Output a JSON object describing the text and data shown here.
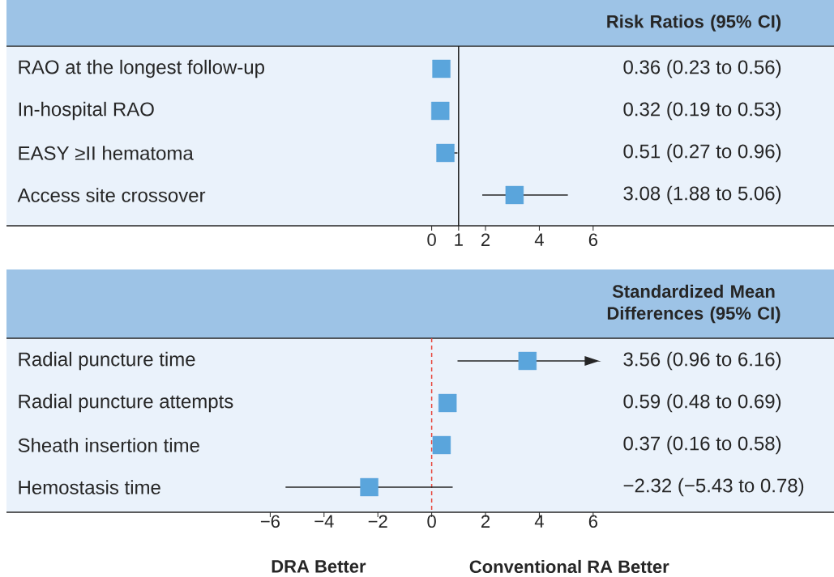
{
  "chart_data": [
    {
      "type": "scatter",
      "orientation": "horizontal",
      "title": "Risk Ratios (95% CI)",
      "categories": [
        "RAO at the longest follow-up",
        "In-hospital RAO",
        "EASY ≥II hematoma",
        "Access site crossover"
      ],
      "values": [
        0.36,
        0.32,
        0.51,
        3.08
      ],
      "errors": [
        null,
        null,
        [
          0.27,
          0.96
        ],
        [
          1.88,
          5.06
        ]
      ],
      "annotations": [
        "0.36 (0.23 to 0.56)",
        "0.32 (0.19 to 0.53)",
        "0.51 (0.27 to 0.96)",
        "3.08 (1.88 to 5.06)"
      ],
      "color": "#5aa5dc",
      "marker": "square",
      "xlim": [
        -15.8,
        14.95
      ],
      "xticks": [
        0,
        1,
        2,
        4,
        6
      ],
      "ref_lines": [
        {
          "axis": "x",
          "value": 1,
          "color": "#1a1a1a",
          "line_style": "solid"
        }
      ]
    },
    {
      "type": "scatter",
      "orientation": "horizontal",
      "title": "Standardized Mean Differences (95% CI)",
      "categories": [
        "Radial puncture time",
        "Radial puncture attempts",
        "Sheath insertion time",
        "Hemostasis time"
      ],
      "values": [
        3.56,
        0.59,
        0.37,
        -2.32
      ],
      "errors": [
        [
          0.96,
          6.16
        ],
        null,
        null,
        [
          -5.43,
          0.78
        ]
      ],
      "annotations": [
        "3.56 (0.96 to 6.16)",
        "0.59 (0.48 to 0.69)",
        "0.37 (0.16 to 0.58)",
        "−2.32 (−5.43 to 0.78)",
        "DRA Better",
        "Conventional RA Better"
      ],
      "color": "#5aa5dc",
      "marker": "square",
      "xlim": [
        -15.8,
        14.95
      ],
      "xticks": [
        {
          "value": -6,
          "label": "−6"
        },
        {
          "value": -4,
          "label": "−4"
        },
        {
          "value": -2,
          "label": "−2"
        },
        0,
        2,
        4,
        6
      ],
      "ref_lines": [
        {
          "axis": "x",
          "value": 0,
          "color": "#e8463c",
          "line_style": "dashed"
        }
      ]
    }
  ]
}
